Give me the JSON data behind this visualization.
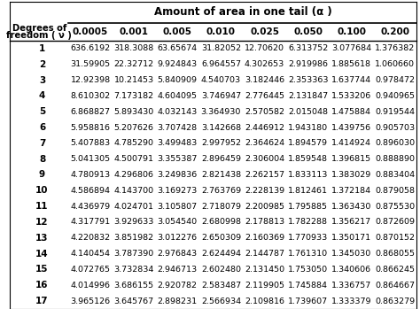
{
  "title": "Amount of area in one tail (α )",
  "col_header_label1": "Degrees of",
  "col_header_label2": "freedom ( ν )",
  "col_headers": [
    "0.0005",
    "0.001",
    "0.005",
    "0.010",
    "0.025",
    "0.050",
    "0.100",
    "0.200"
  ],
  "row_labels": [
    "1",
    "2",
    "3",
    "4",
    "5",
    "6",
    "7",
    "8",
    "9",
    "10",
    "11",
    "12",
    "13",
    "14",
    "15",
    "16",
    "17"
  ],
  "table_data": [
    [
      636.6192,
      318.3088,
      63.65674,
      31.82052,
      12.7062,
      6.313752,
      3.077684,
      1.376382
    ],
    [
      31.59905,
      22.32712,
      9.924843,
      6.964557,
      4.302653,
      2.919986,
      1.885618,
      1.06066
    ],
    [
      12.92398,
      10.21453,
      5.840909,
      4.540703,
      3.182446,
      2.353363,
      1.637744,
      0.978472
    ],
    [
      8.610302,
      7.173182,
      4.604095,
      3.746947,
      2.776445,
      2.131847,
      1.533206,
      0.940965
    ],
    [
      6.868827,
      5.89343,
      4.032143,
      3.36493,
      2.570582,
      2.015048,
      1.475884,
      0.919544
    ],
    [
      5.958816,
      5.207626,
      3.707428,
      3.142668,
      2.446912,
      1.94318,
      1.439756,
      0.905703
    ],
    [
      5.407883,
      4.78529,
      3.499483,
      2.997952,
      2.364624,
      1.894579,
      1.414924,
      0.89603
    ],
    [
      5.041305,
      4.500791,
      3.355387,
      2.896459,
      2.306004,
      1.859548,
      1.396815,
      0.88889
    ],
    [
      4.780913,
      4.296806,
      3.249836,
      2.821438,
      2.262157,
      1.833113,
      1.383029,
      0.883404
    ],
    [
      4.586894,
      4.1437,
      3.169273,
      2.763769,
      2.228139,
      1.812461,
      1.372184,
      0.879058
    ],
    [
      4.436979,
      4.024701,
      3.105807,
      2.718079,
      2.200985,
      1.795885,
      1.36343,
      0.87553
    ],
    [
      4.317791,
      3.929633,
      3.05454,
      2.680998,
      2.178813,
      1.782288,
      1.356217,
      0.872609
    ],
    [
      4.220832,
      3.851982,
      3.012276,
      2.650309,
      2.160369,
      1.770933,
      1.350171,
      0.870152
    ],
    [
      4.140454,
      3.78739,
      2.976843,
      2.624494,
      2.144787,
      1.76131,
      1.34503,
      0.868055
    ],
    [
      4.072765,
      3.732834,
      2.946713,
      2.60248,
      2.13145,
      1.75305,
      1.340606,
      0.866245
    ],
    [
      4.014996,
      3.686155,
      2.920782,
      2.583487,
      2.119905,
      1.745884,
      1.336757,
      0.864667
    ],
    [
      3.965126,
      3.645767,
      2.898231,
      2.566934,
      2.109816,
      1.739607,
      1.333379,
      0.863279
    ]
  ],
  "bg_color": "#ffffff",
  "title_fontsize": 8.5,
  "header_fontsize": 7.5,
  "cell_fontsize": 6.8,
  "row_label_fontsize": 7.5,
  "col_header_fontsize": 7.2
}
